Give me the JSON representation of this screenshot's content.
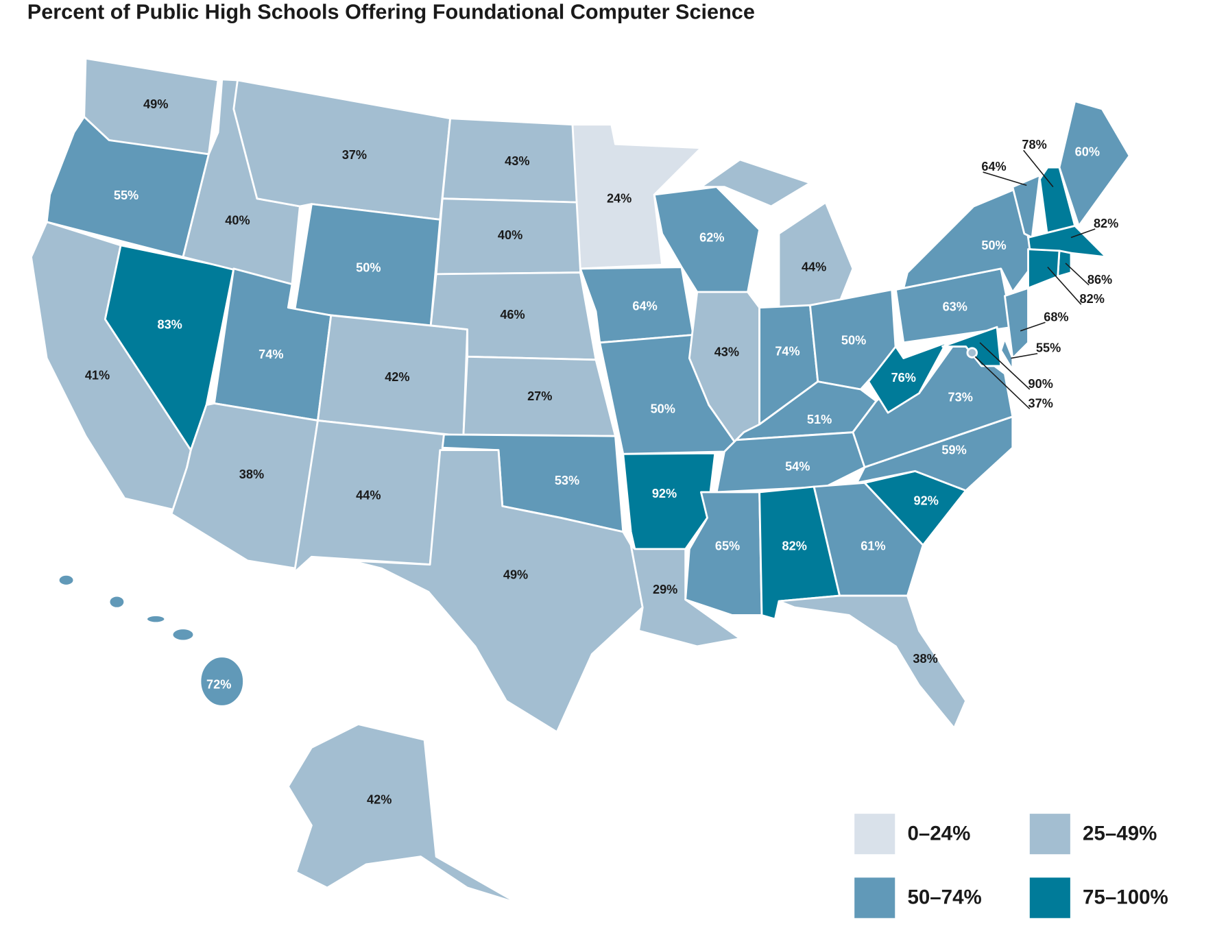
{
  "map": {
    "title": "Percent of Public High Schools Offering Foundational Computer Science",
    "legend": [
      {
        "label": "0–24%",
        "range": [
          0,
          24
        ],
        "color": "#d9e1ea",
        "text_color": "#1a1a1a"
      },
      {
        "label": "25–49%",
        "range": [
          25,
          49
        ],
        "color": "#a3bed1",
        "text_color": "#1a1a1a"
      },
      {
        "label": "50–74%",
        "range": [
          50,
          74
        ],
        "color": "#6199b8",
        "text_color": "#ffffff"
      },
      {
        "label": "75–100%",
        "range": [
          75,
          100
        ],
        "color": "#007b99",
        "text_color": "#ffffff"
      }
    ],
    "states": [
      {
        "value": 49,
        "value_label": "49%"
      },
      {
        "value": 55,
        "value_label": "55%"
      },
      {
        "value": 41,
        "value_label": "41%"
      },
      {
        "value": 83,
        "value_label": "83%"
      },
      {
        "value": 40,
        "value_label": "40%"
      },
      {
        "value": 37,
        "value_label": "37%"
      },
      {
        "value": 50,
        "value_label": "50%"
      },
      {
        "value": 74,
        "value_label": "74%"
      },
      {
        "value": 38,
        "value_label": "38%"
      },
      {
        "value": 42,
        "value_label": "42%"
      },
      {
        "value": 44,
        "value_label": "44%"
      },
      {
        "value": 43,
        "value_label": "43%"
      },
      {
        "value": 40,
        "value_label": "40%"
      },
      {
        "value": 46,
        "value_label": "46%"
      },
      {
        "value": 27,
        "value_label": "27%"
      },
      {
        "value": 53,
        "value_label": "53%"
      },
      {
        "value": 49,
        "value_label": "49%"
      },
      {
        "value": 24,
        "value_label": "24%"
      },
      {
        "value": 64,
        "value_label": "64%"
      },
      {
        "value": 50,
        "value_label": "50%"
      },
      {
        "value": 92,
        "value_label": "92%"
      },
      {
        "value": 29,
        "value_label": "29%"
      },
      {
        "value": 62,
        "value_label": "62%"
      },
      {
        "value": 43,
        "value_label": "43%"
      },
      {
        "value": 44,
        "value_label": "44%"
      },
      {
        "value": 74,
        "value_label": "74%"
      },
      {
        "value": 50,
        "value_label": "50%"
      },
      {
        "value": 51,
        "value_label": "51%"
      },
      {
        "value": 54,
        "value_label": "54%"
      },
      {
        "value": 65,
        "value_label": "65%"
      },
      {
        "value": 82,
        "value_label": "82%"
      },
      {
        "value": 61,
        "value_label": "61%"
      },
      {
        "value": 38,
        "value_label": "38%"
      },
      {
        "value": 92,
        "value_label": "92%"
      },
      {
        "value": 59,
        "value_label": "59%"
      },
      {
        "value": 73,
        "value_label": "73%"
      },
      {
        "value": 76,
        "value_label": "76%"
      },
      {
        "value": 63,
        "value_label": "63%"
      },
      {
        "value": 50,
        "value_label": "50%"
      },
      {
        "value": 60,
        "value_label": "60%"
      },
      {
        "value": 78,
        "value_label": "78%"
      },
      {
        "value": 64,
        "value_label": "64%"
      },
      {
        "value": 82,
        "value_label": "82%"
      },
      {
        "value": 86,
        "value_label": "86%"
      },
      {
        "value": 82,
        "value_label": "82%"
      },
      {
        "value": 68,
        "value_label": "68%"
      },
      {
        "value": 55,
        "value_label": "55%"
      },
      {
        "value": 90,
        "value_label": "90%"
      },
      {
        "value": 37,
        "value_label": "37%"
      },
      {
        "value": 42,
        "value_label": "42%"
      },
      {
        "value": 72,
        "value_label": "72%"
      }
    ]
  }
}
